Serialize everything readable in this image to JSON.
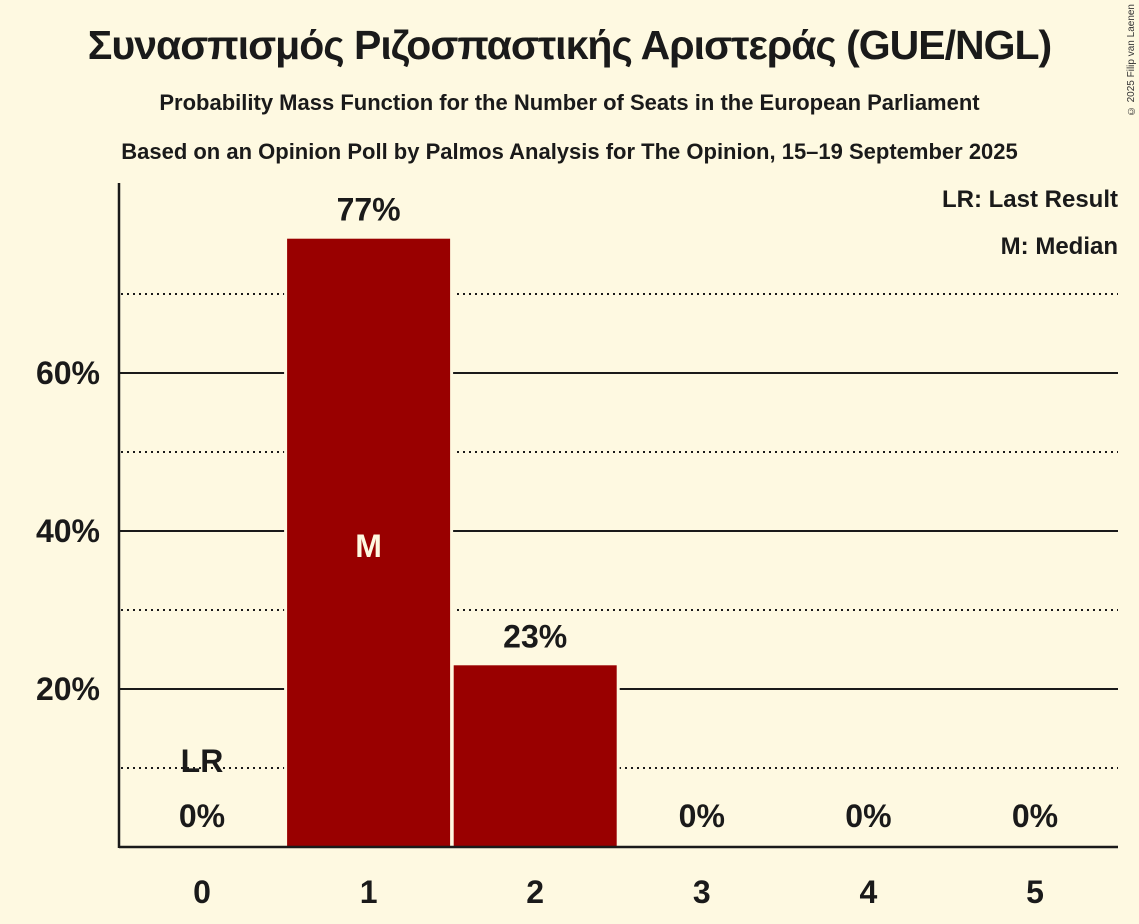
{
  "header": {
    "title": "Συνασπισμός Ριζοσπαστικής Αριστεράς (GUE/NGL)",
    "subtitle": "Probability Mass Function for the Number of Seats in the European Parliament",
    "source": "Based on an Opinion Poll by Palmos Analysis for The Opinion, 15–19 September 2025",
    "copyright": "© 2025 Filip van Laenen"
  },
  "legend": {
    "last_result": "LR: Last Result",
    "median": "M: Median"
  },
  "colors": {
    "background": "#fef9e1",
    "bar": "#990000",
    "text": "#1a1a1a"
  },
  "chart_data": {
    "type": "bar",
    "title": "Συνασπισμός Ριζοσπαστικής Αριστεράς (GUE/NGL)",
    "subtitle": "Probability Mass Function for the Number of Seats in the European Parliament",
    "xlabel": "",
    "ylabel": "",
    "categories": [
      "0",
      "1",
      "2",
      "3",
      "4",
      "5"
    ],
    "values": [
      0,
      77,
      23,
      0,
      0,
      0
    ],
    "value_labels": [
      "0%",
      "77%",
      "23%",
      "0%",
      "0%",
      "0%"
    ],
    "y_ticks": [
      "20%",
      "40%",
      "60%"
    ],
    "y_tick_values": [
      20,
      40,
      60
    ],
    "minor_gridlines": [
      10,
      30,
      50,
      70
    ],
    "ylim": [
      0,
      84
    ],
    "annotations": [
      {
        "category": "0",
        "text": "LR",
        "meaning": "Last Result"
      },
      {
        "category": "1",
        "text": "M",
        "meaning": "Median"
      }
    ],
    "legend_position": "top-right"
  }
}
